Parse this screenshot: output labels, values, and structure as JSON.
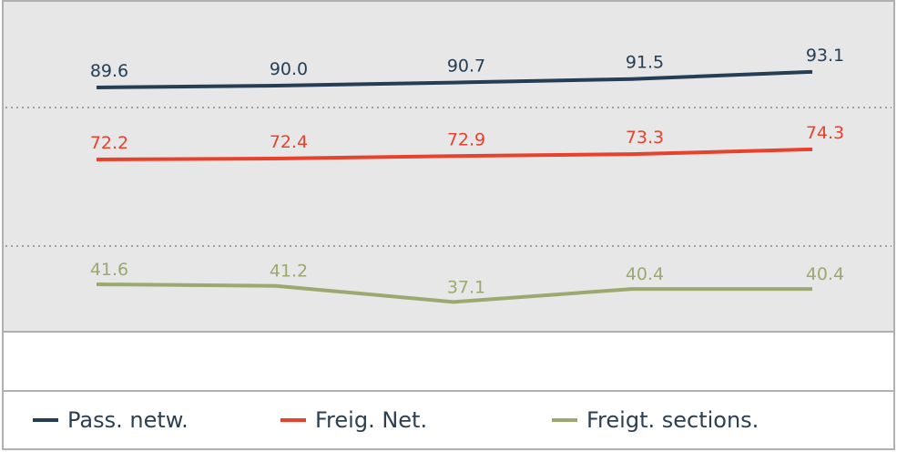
{
  "chart_data": {
    "type": "line",
    "categories": [
      "",
      "",
      "",
      "",
      ""
    ],
    "series": [
      {
        "name": "Pass. netw.",
        "color": "#243f55",
        "values": [
          89.6,
          90.0,
          90.7,
          91.5,
          93.1
        ],
        "labels": [
          "89.6",
          "90.0",
          "90.7",
          "91.5",
          "93.1"
        ]
      },
      {
        "name": "Freig. Net.",
        "color": "#e8412c",
        "values": [
          72.2,
          72.4,
          72.9,
          73.3,
          74.3
        ],
        "labels": [
          "72.2",
          "72.4",
          "72.9",
          "73.3",
          "74.3"
        ]
      },
      {
        "name": "Freigt. sections.",
        "color": "#9ba86f",
        "values": [
          41.6,
          41.2,
          37.1,
          40.4,
          40.4
        ],
        "labels": [
          "41.6",
          "41.2",
          "37.1",
          "40.4",
          "40.4"
        ]
      }
    ],
    "legend_position": "bottom",
    "grid": "dotted horizontal separators",
    "colors": {
      "plot_background": "#e7e7e7",
      "border": "#b0b0b0",
      "grid": "#8a8a8a"
    }
  }
}
